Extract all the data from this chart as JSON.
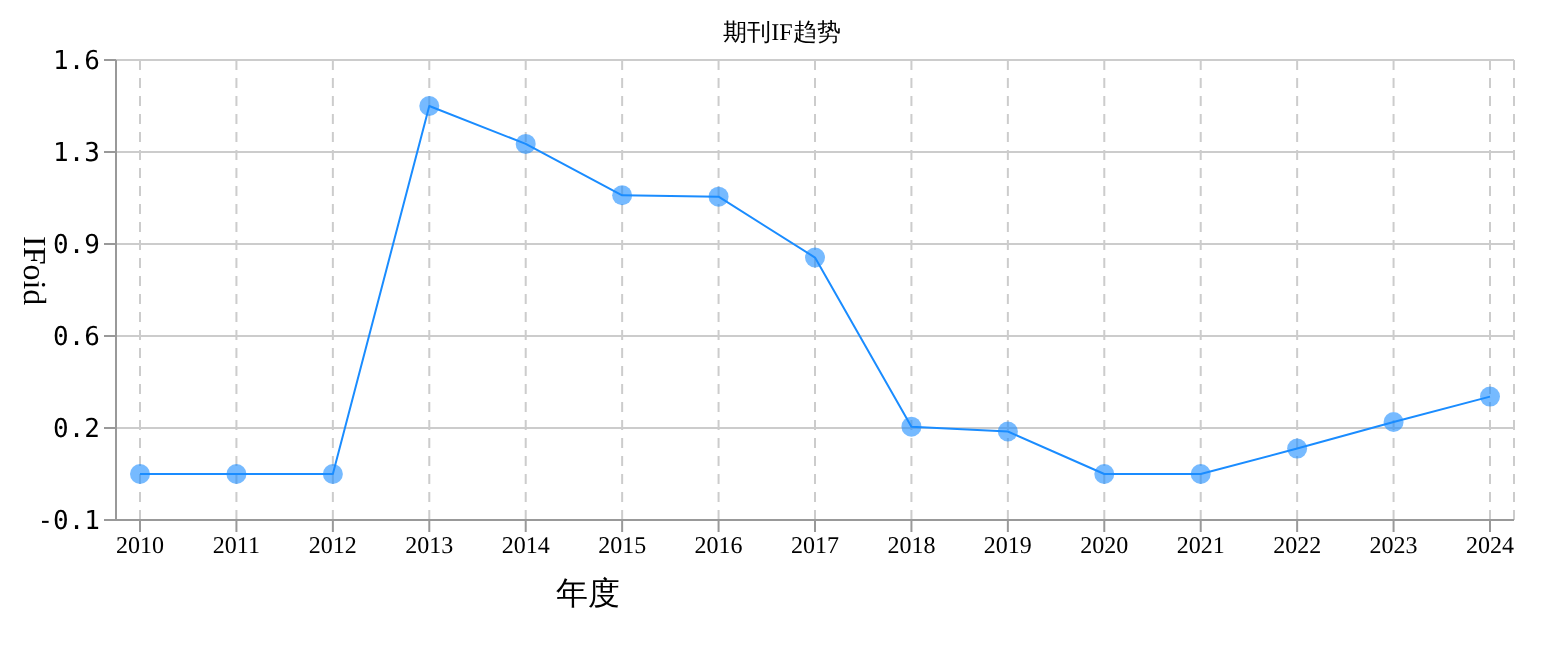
{
  "chart_data": {
    "type": "line",
    "title": "期刊IF趋势",
    "xlabel": "年度",
    "ylabel": "IFoid",
    "categories": [
      "2010",
      "2011",
      "2012",
      "2013",
      "2014",
      "2015",
      "2016",
      "2017",
      "2018",
      "2019",
      "2020",
      "2021",
      "2022",
      "2023",
      "2024"
    ],
    "series": [
      {
        "color": "#1a8cff",
        "values": [
          0.07,
          0.07,
          0.07,
          1.43,
          1.29,
          1.1,
          1.095,
          0.87,
          0.245,
          0.227,
          0.07,
          0.07,
          0.164,
          0.262,
          0.356
        ]
      }
    ],
    "ylim": [
      -0.1,
      1.6
    ],
    "yticks": [
      -0.1,
      {
        "value": 0.24,
        "label": "0.2"
      },
      {
        "value": 0.58,
        "label": "0.6"
      },
      {
        "value": 0.92,
        "label": "0.9"
      },
      {
        "value": 1.26,
        "label": "1.3"
      },
      1.6
    ],
    "grid": true,
    "marker": "circle",
    "line_style": "solid"
  }
}
